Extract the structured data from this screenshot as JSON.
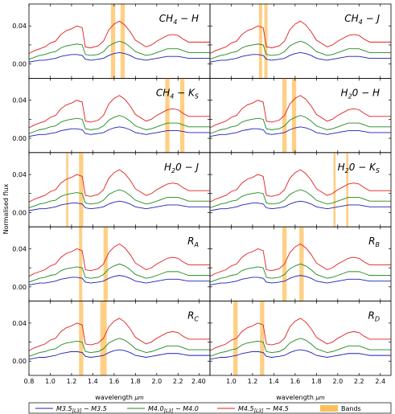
{
  "chart_data": {
    "type": "line",
    "layout": {
      "rows": 5,
      "cols": 2
    },
    "xlabel": "wavelength",
    "xlabel_unit": "μm",
    "ylabel": "Normalised flux",
    "xlim": [
      0.8,
      2.5
    ],
    "ylim": [
      -0.015,
      0.063
    ],
    "yticks": [
      0.0,
      0.02,
      0.04
    ],
    "yticks_display": [
      "0.00",
      "",
      "0.04"
    ],
    "xticks": [
      0.8,
      1.0,
      1.2,
      1.4,
      1.6,
      1.8,
      2.0,
      2.2,
      2.4
    ],
    "xticks_display": [
      "0.8",
      "1.0",
      "1.2",
      "1.4",
      "1.6",
      "1.8",
      "2.0",
      "2.2",
      "2.40"
    ],
    "xticks_right_display": [
      "",
      "1.0",
      "1.2",
      "1.4",
      "1.6",
      "1.8",
      "2.0",
      "2.2",
      "2.4"
    ],
    "band_color": "#fdbf5b",
    "series": [
      {
        "name": "M3.5[L3] − M3.5",
        "color": "#1f1fb4",
        "points": [
          [
            0.8,
            0.002
          ],
          [
            0.85,
            0.003
          ],
          [
            0.9,
            0.004
          ],
          [
            0.95,
            0.004
          ],
          [
            1.0,
            0.005
          ],
          [
            1.05,
            0.006
          ],
          [
            1.1,
            0.008
          ],
          [
            1.15,
            0.009
          ],
          [
            1.2,
            0.01
          ],
          [
            1.25,
            0.01
          ],
          [
            1.3,
            0.009
          ],
          [
            1.33,
            0.005
          ],
          [
            1.38,
            0.004
          ],
          [
            1.45,
            0.005
          ],
          [
            1.5,
            0.006
          ],
          [
            1.55,
            0.009
          ],
          [
            1.6,
            0.011
          ],
          [
            1.65,
            0.012
          ],
          [
            1.7,
            0.011
          ],
          [
            1.75,
            0.009
          ],
          [
            1.8,
            0.006
          ],
          [
            1.9,
            0.004
          ],
          [
            1.95,
            0.005
          ],
          [
            2.0,
            0.006
          ],
          [
            2.05,
            0.007
          ],
          [
            2.1,
            0.008
          ],
          [
            2.15,
            0.008
          ],
          [
            2.2,
            0.008
          ],
          [
            2.25,
            0.007
          ],
          [
            2.3,
            0.006
          ],
          [
            2.35,
            0.006
          ],
          [
            2.4,
            0.006
          ],
          [
            2.45,
            0.006
          ],
          [
            2.5,
            0.006
          ]
        ]
      },
      {
        "name": "M4.0[L3] − M4.0",
        "color": "#1e8a1e",
        "points": [
          [
            0.8,
            0.005
          ],
          [
            0.85,
            0.007
          ],
          [
            0.9,
            0.009
          ],
          [
            0.95,
            0.01
          ],
          [
            1.0,
            0.012
          ],
          [
            1.05,
            0.013
          ],
          [
            1.1,
            0.017
          ],
          [
            1.15,
            0.019
          ],
          [
            1.2,
            0.02
          ],
          [
            1.25,
            0.021
          ],
          [
            1.3,
            0.02
          ],
          [
            1.33,
            0.01
          ],
          [
            1.38,
            0.009
          ],
          [
            1.45,
            0.01
          ],
          [
            1.5,
            0.013
          ],
          [
            1.55,
            0.019
          ],
          [
            1.6,
            0.022
          ],
          [
            1.65,
            0.024
          ],
          [
            1.7,
            0.022
          ],
          [
            1.75,
            0.018
          ],
          [
            1.8,
            0.013
          ],
          [
            1.9,
            0.009
          ],
          [
            1.95,
            0.01
          ],
          [
            2.0,
            0.012
          ],
          [
            2.05,
            0.014
          ],
          [
            2.1,
            0.016
          ],
          [
            2.15,
            0.016
          ],
          [
            2.2,
            0.016
          ],
          [
            2.25,
            0.014
          ],
          [
            2.3,
            0.012
          ],
          [
            2.35,
            0.012
          ],
          [
            2.4,
            0.012
          ],
          [
            2.45,
            0.012
          ],
          [
            2.5,
            0.012
          ]
        ]
      },
      {
        "name": "M4.5[L3] − M4.5",
        "color": "#e01e1e",
        "points": [
          [
            0.8,
            0.011
          ],
          [
            0.85,
            0.014
          ],
          [
            0.9,
            0.016
          ],
          [
            0.95,
            0.018
          ],
          [
            1.0,
            0.022
          ],
          [
            1.05,
            0.024
          ],
          [
            1.1,
            0.031
          ],
          [
            1.15,
            0.035
          ],
          [
            1.2,
            0.037
          ],
          [
            1.25,
            0.04
          ],
          [
            1.3,
            0.038
          ],
          [
            1.33,
            0.018
          ],
          [
            1.38,
            0.017
          ],
          [
            1.45,
            0.019
          ],
          [
            1.5,
            0.024
          ],
          [
            1.55,
            0.036
          ],
          [
            1.6,
            0.042
          ],
          [
            1.65,
            0.045
          ],
          [
            1.7,
            0.041
          ],
          [
            1.75,
            0.034
          ],
          [
            1.8,
            0.025
          ],
          [
            1.9,
            0.018
          ],
          [
            1.95,
            0.02
          ],
          [
            2.0,
            0.024
          ],
          [
            2.05,
            0.027
          ],
          [
            2.1,
            0.03
          ],
          [
            2.15,
            0.031
          ],
          [
            2.2,
            0.03
          ],
          [
            2.25,
            0.026
          ],
          [
            2.3,
            0.023
          ],
          [
            2.35,
            0.023
          ],
          [
            2.4,
            0.023
          ],
          [
            2.45,
            0.023
          ],
          [
            2.5,
            0.023
          ]
        ]
      }
    ],
    "panels": [
      {
        "label_main": "CH",
        "label_sub": "4",
        "label_tail": " − H",
        "bands": [
          [
            1.57,
            1.61
          ],
          [
            1.66,
            1.7
          ]
        ]
      },
      {
        "label_main": "CH",
        "label_sub": "4",
        "label_tail": " − J",
        "bands": [
          [
            1.26,
            1.29
          ],
          [
            1.31,
            1.34
          ]
        ]
      },
      {
        "label_main": "CH",
        "label_sub": "4",
        "label_tail": " − K",
        "label_tail_sub": "S",
        "bands": [
          [
            2.08,
            2.12
          ],
          [
            2.22,
            2.26
          ]
        ]
      },
      {
        "label_main": "H",
        "label_sub": "2",
        "label_tail": "0 − H",
        "bands": [
          [
            1.48,
            1.52
          ],
          [
            1.57,
            1.61
          ]
        ]
      },
      {
        "label_main": "H",
        "label_sub": "2",
        "label_tail": "0 − J",
        "bands": [
          [
            1.15,
            1.17
          ],
          [
            1.27,
            1.31
          ]
        ]
      },
      {
        "label_main": "H",
        "label_sub": "2",
        "label_tail": "0 − K",
        "label_tail_sub": "S",
        "bands": [
          [
            1.96,
            1.98
          ],
          [
            2.08,
            2.1
          ]
        ]
      },
      {
        "label_main": "R",
        "label_sub": "A",
        "label_tail": "",
        "bands": [
          [
            1.27,
            1.3
          ],
          [
            1.5,
            1.54
          ]
        ]
      },
      {
        "label_main": "R",
        "label_sub": "B",
        "label_tail": "",
        "bands": [
          [
            1.48,
            1.52
          ],
          [
            1.64,
            1.68
          ]
        ]
      },
      {
        "label_main": "R",
        "label_sub": "C",
        "label_tail": "",
        "bands": [
          [
            1.27,
            1.31
          ],
          [
            1.47,
            1.53
          ]
        ]
      },
      {
        "label_main": "R",
        "label_sub": "D",
        "label_tail": "",
        "bands": [
          [
            1.02,
            1.06
          ],
          [
            1.27,
            1.31
          ]
        ]
      }
    ],
    "legend": {
      "placement": "bottom",
      "entries": [
        {
          "type": "line",
          "main": "M3.5",
          "sub": "[L3]",
          "tail": " − M3.5",
          "color": "#1f1fb4"
        },
        {
          "type": "line",
          "main": "M4.0",
          "sub": "[L3]",
          "tail": " − M4.0",
          "color": "#1e8a1e"
        },
        {
          "type": "line",
          "main": "M4.5",
          "sub": "[L3]",
          "tail": " − M4.5",
          "color": "#e01e1e"
        },
        {
          "type": "patch",
          "label": "Bands",
          "color": "#fdbf5b"
        }
      ]
    }
  }
}
